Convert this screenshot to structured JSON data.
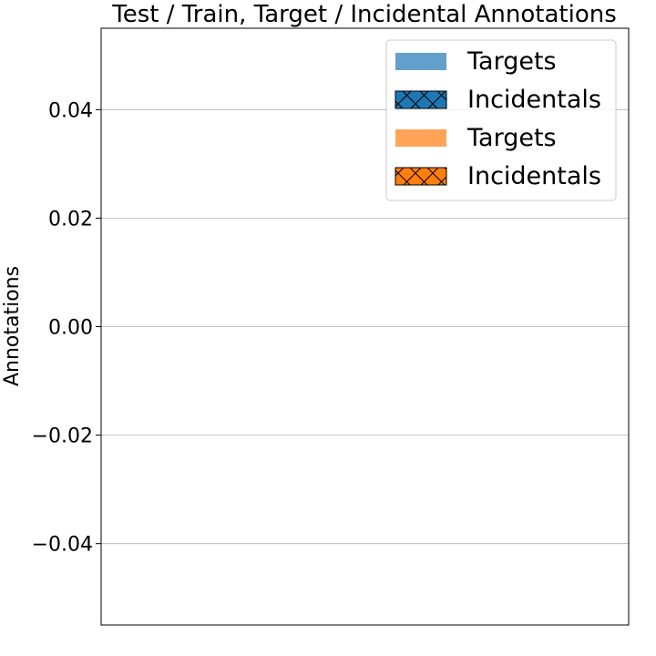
{
  "chart_data": {
    "type": "bar",
    "title": "Test / Train, Target / Incidental Annotations",
    "xlabel": "",
    "ylabel": "Annotations",
    "ylim": [
      -0.055,
      0.055
    ],
    "yticks": [
      0.04,
      0.02,
      0.0,
      -0.02,
      -0.04
    ],
    "ytick_labels": [
      "0.04",
      "0.02",
      "0.00",
      "−0.02",
      "−0.04"
    ],
    "grid": "y",
    "legend_position": "top-right",
    "categories": [],
    "series": [
      {
        "name": "Targets",
        "values": [],
        "color": "#629fcd",
        "hatch": "none"
      },
      {
        "name": "Incidentals",
        "values": [],
        "color": "#1f77b4",
        "hatch": "cross"
      },
      {
        "name": "Targets",
        "values": [],
        "color": "#ffa358",
        "hatch": "none"
      },
      {
        "name": "Incidentals",
        "values": [],
        "color": "#ff7f0e",
        "hatch": "cross"
      }
    ]
  }
}
